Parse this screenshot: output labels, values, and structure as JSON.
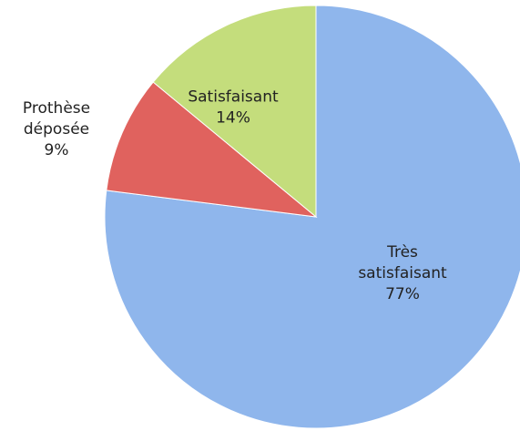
{
  "chart_data": {
    "type": "pie",
    "categories": [
      "Très satisfaisant",
      "Prothèse déposée",
      "Satisfaisant"
    ],
    "values": [
      77,
      9,
      14
    ],
    "value_labels": [
      "77%",
      "9%",
      "14%"
    ],
    "colors": [
      "#8fb6ec",
      "#e0625e",
      "#c4dd7c"
    ]
  }
}
